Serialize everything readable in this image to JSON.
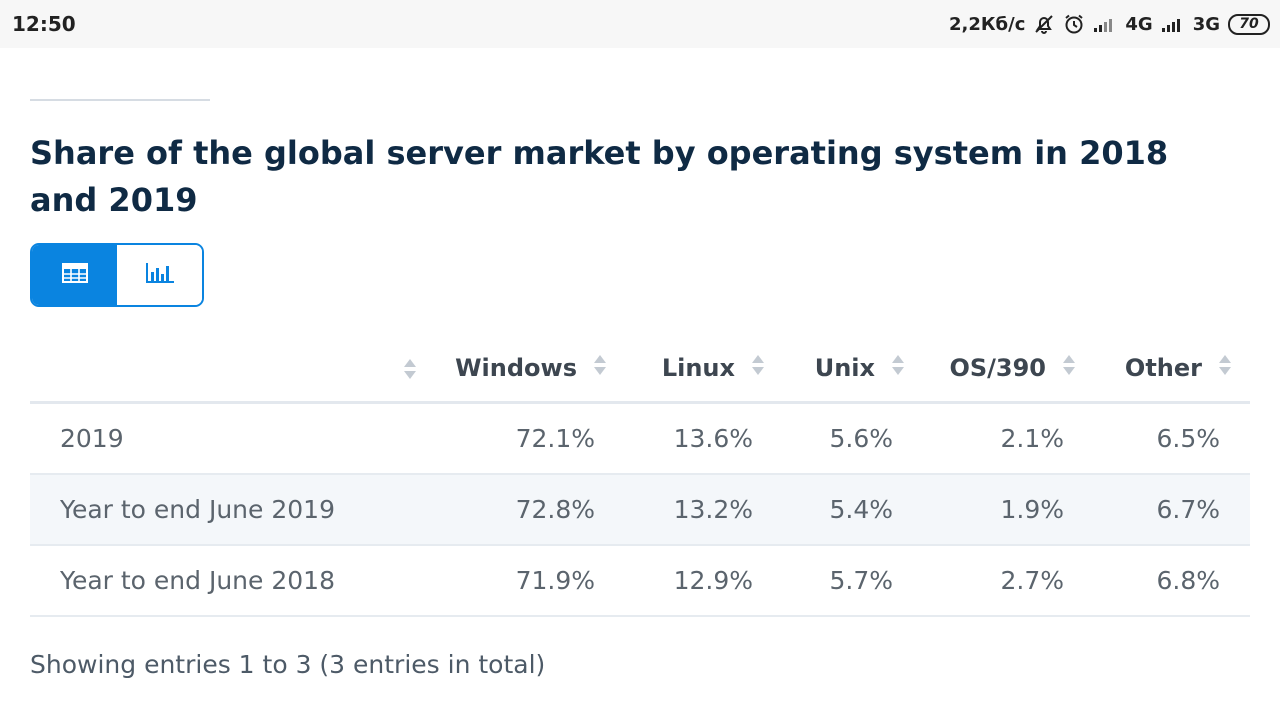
{
  "status_bar": {
    "time": "12:50",
    "speed": "2,2Кб/с",
    "network_1": "4G",
    "network_2": "3G",
    "battery": "70"
  },
  "page_title": "Share of the global server market by operating system in 2018 and 2019",
  "toggle": {
    "table_icon": "table-icon",
    "chart_icon": "bar-chart-icon",
    "active": "table"
  },
  "table": {
    "columns": [
      "",
      "Windows",
      "Linux",
      "Unix",
      "OS/390",
      "Other"
    ],
    "rows": [
      {
        "label": "2019",
        "values": [
          "72.1%",
          "13.6%",
          "5.6%",
          "2.1%",
          "6.5%"
        ]
      },
      {
        "label": "Year to end June 2019",
        "values": [
          "72.8%",
          "13.2%",
          "5.4%",
          "1.9%",
          "6.7%"
        ]
      },
      {
        "label": "Year to end June 2018",
        "values": [
          "71.9%",
          "12.9%",
          "5.7%",
          "2.7%",
          "6.8%"
        ]
      }
    ]
  },
  "footer": "Showing entries 1 to 3 (3 entries in total)",
  "colors": {
    "accent": "#0a84e0",
    "title": "#0f2a44",
    "row_alt": "#f4f7fa"
  }
}
